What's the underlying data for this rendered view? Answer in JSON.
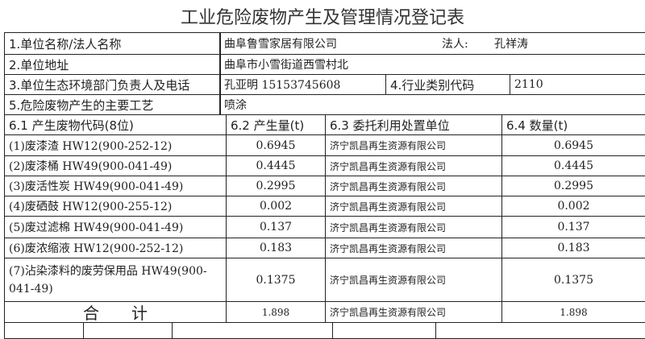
{
  "title": "工业危险废物产生及管理情况登记表",
  "info": {
    "name_label": "1.单位名称/法人名称",
    "name_value": "曲阜鲁雪家居有限公司",
    "legal_label": "法人:",
    "legal_value": "孔祥涛",
    "address_label": "2.单位地址",
    "address_value": "曲阜市小雪街道西雪村北",
    "contact_label": "3.单位生态环境部门负责人及电话",
    "contact_value": "孔亚明 15153745608",
    "industry_label": "4.行业类别代码",
    "industry_value": "2110",
    "process_label": "5.危险废物产生的主要工艺",
    "process_value": "喷涂"
  },
  "headers": [
    "6.1 产生废物代码(8位)",
    "6.2 产生量(t)",
    "6.3 委托利用处置单位",
    "6.4 数量(t)"
  ],
  "rows": [
    [
      "(1)废漆渣 HW12(900-252-12)",
      "0.6945",
      "济宁凯昌再生资源有限公司",
      "0.6945"
    ],
    [
      "(2)废漆桶 HW49(900-041-49)",
      "0.4445",
      "济宁凯昌再生资源有限公司",
      "0.4445"
    ],
    [
      "(3)废活性炭 HW49(900-041-49)",
      "0.2995",
      "济宁凯昌再生资源有限公司",
      "0.2995"
    ],
    [
      "(4)废硒鼓 HW12(900-255-12)",
      "0.002",
      "济宁凯昌再生资源有限公司",
      "0.002"
    ],
    [
      "(5)废过滤棉 HW49(900-041-49)",
      "0.137",
      "济宁凯昌再生资源有限公司",
      "0.137"
    ],
    [
      "(6)废浓缩液 HW12(900-252-12)",
      "0.183",
      "济宁凯昌再生资源有限公司",
      "0.183"
    ],
    [
      "(7)沾染漆料的废劳保用品 HW49(900-041-49)",
      "0.1375",
      "济宁凯昌再生资源有限公司",
      "0.1375"
    ]
  ],
  "total": [
    "合　　计",
    "1.898",
    "济宁凯昌再生资源有限公司",
    "1.898"
  ]
}
